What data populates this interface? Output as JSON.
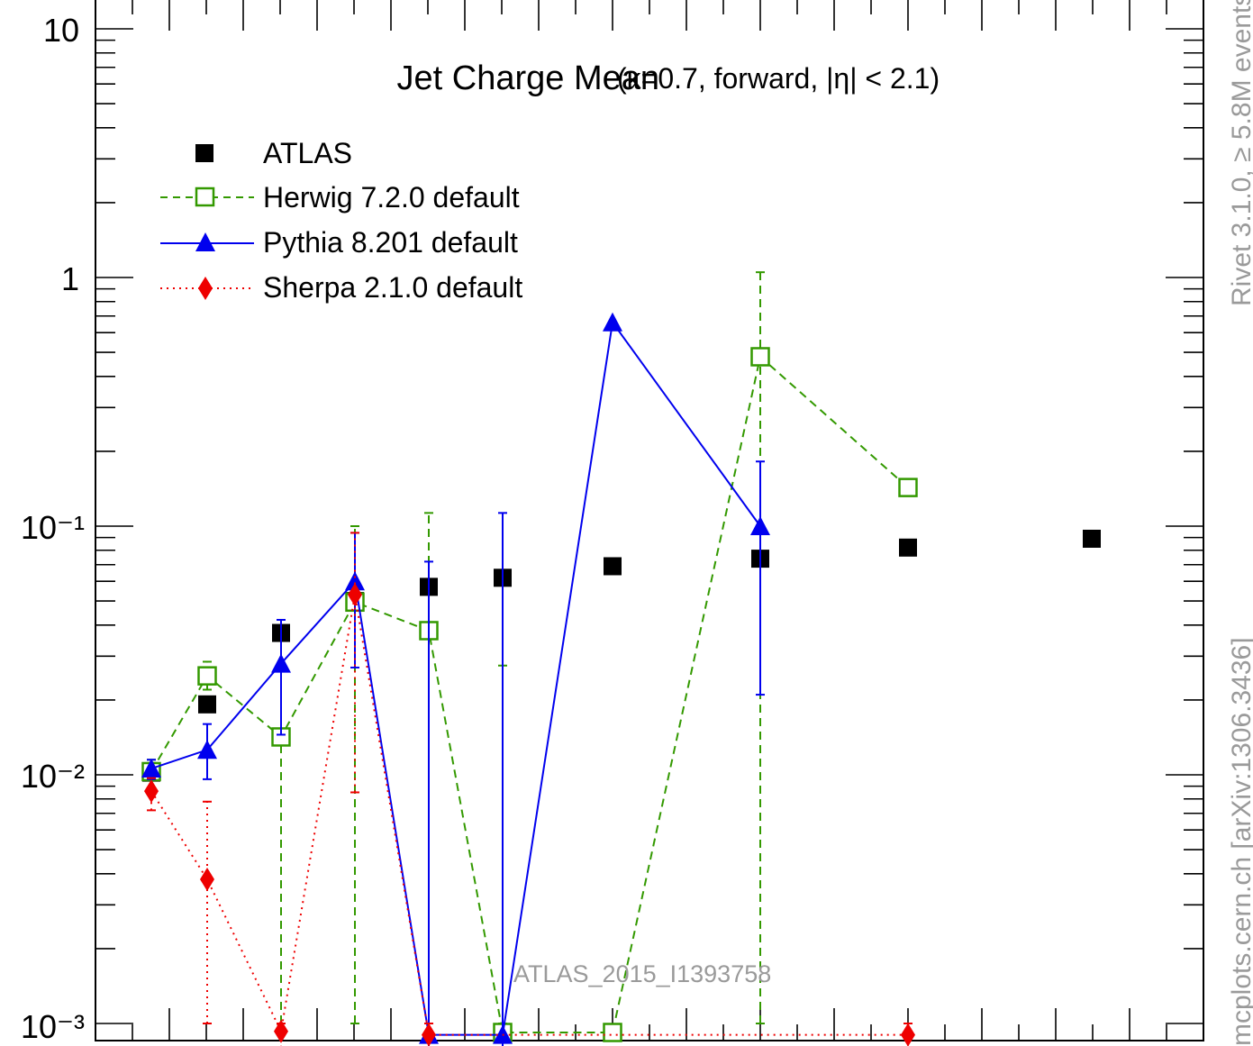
{
  "chart_data": {
    "type": "line",
    "title": "Jet Charge Mean",
    "subtitle": "(κ=0.7, forward, |η| < 2.1)",
    "yscale": "log",
    "ylim": [
      0.001,
      10
    ],
    "xlabel": "",
    "ylabel": "",
    "y_tick_labels": [
      "10",
      "1",
      "10⁻¹",
      "10⁻²",
      "10⁻³"
    ],
    "grid": false,
    "legend_position": "top-left",
    "analysis_label": "ATLAS_2015_I1393758",
    "side_label_top": "Rivet 3.1.0, ≥ 5.8M events",
    "side_label_bottom": "mcplots.cern.ch [arXiv:1306.3436]",
    "x": [
      1,
      2,
      3,
      4,
      5,
      6,
      7,
      8,
      9,
      10
    ],
    "series": [
      {
        "name": "ATLAS",
        "color": "#000000",
        "marker": "filled-square",
        "line": "none",
        "x": [
          1,
          2,
          3,
          4,
          5,
          6,
          7,
          8,
          9,
          10
        ],
        "values": [
          0.0102,
          0.0192,
          0.0372,
          0.05,
          0.057,
          0.062,
          0.069,
          0.074,
          0.082,
          0.089
        ]
      },
      {
        "name": "Herwig 7.2.0 default",
        "color": "#339900",
        "marker": "open-square",
        "line": "dashed",
        "x": [
          1,
          2,
          3,
          4,
          5,
          6,
          7,
          8,
          9
        ],
        "values": [
          0.0103,
          0.025,
          0.0142,
          0.0495,
          0.038,
          0.00092,
          0.00092,
          0.48,
          0.143
        ],
        "err_low": [
          0.0095,
          0.022,
          0.001,
          0.001,
          0.001,
          0.001,
          0.001,
          0.001,
          0.143
        ],
        "err_high": [
          0.0115,
          0.0285,
          0.0145,
          0.1,
          0.113,
          0.0275,
          0.001,
          1.05,
          0.143
        ]
      },
      {
        "name": "Pythia 8.201 default",
        "color": "#0000ee",
        "marker": "filled-triangle",
        "line": "solid",
        "x": [
          1,
          2,
          3,
          4,
          5,
          6,
          7,
          8
        ],
        "values": [
          0.0106,
          0.0126,
          0.028,
          0.06,
          0.0009,
          0.0009,
          0.66,
          0.1
        ],
        "err_low": [
          0.0096,
          0.0096,
          0.0145,
          0.027,
          0.0008,
          0.0008,
          0.66,
          0.021
        ],
        "err_high": [
          0.0115,
          0.016,
          0.042,
          0.094,
          0.072,
          0.113,
          0.66,
          0.182
        ]
      },
      {
        "name": "Sherpa 2.1.0 default",
        "color": "#ee0000",
        "marker": "filled-diamond",
        "line": "dotted",
        "x": [
          1,
          2,
          3,
          4,
          5,
          9
        ],
        "values": [
          0.0086,
          0.0038,
          0.00093,
          0.053,
          0.0009,
          0.0009
        ],
        "err_low": [
          0.0072,
          0.001,
          0.0008,
          0.0085,
          0.0008,
          0.0008
        ],
        "err_high": [
          0.0097,
          0.0078,
          0.001,
          0.094,
          0.001,
          0.001
        ]
      }
    ]
  }
}
